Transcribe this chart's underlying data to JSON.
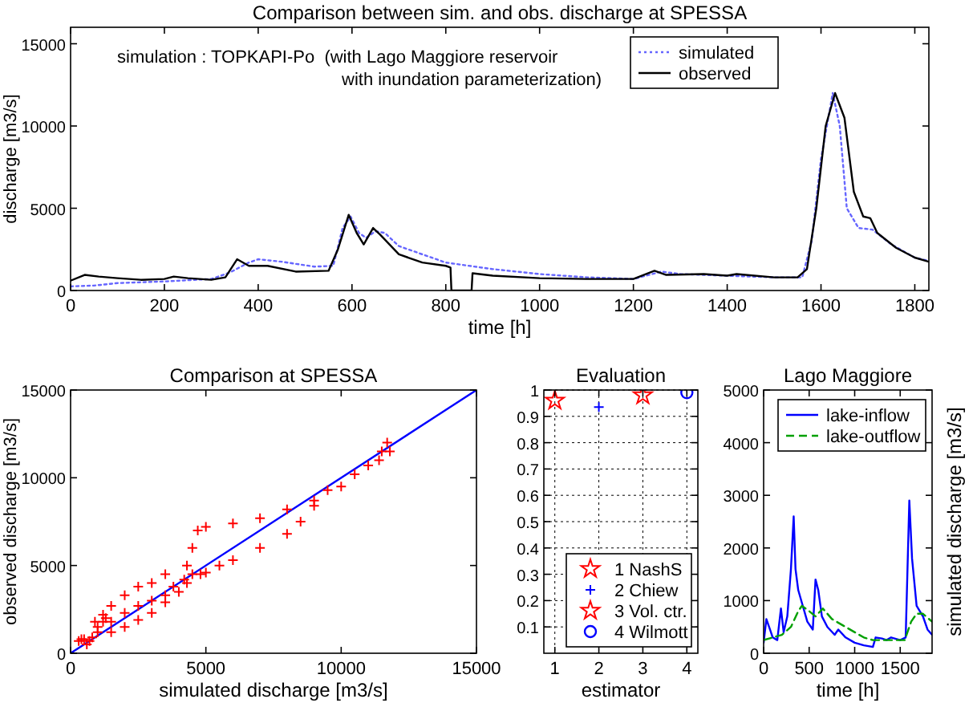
{
  "chart_data": [
    {
      "type": "line",
      "title": "Comparison between sim. and obs. discharge at SPESSA",
      "xlabel": "time [h]",
      "ylabel": "discharge [m3/s]",
      "annotations": [
        "simulation : TOPKAPI-Po  (with Lago Maggiore reservoir",
        "with inundation parameterization)"
      ],
      "xlim": [
        0,
        1830
      ],
      "ylim": [
        0,
        16000
      ],
      "xticks": [
        0,
        200,
        400,
        600,
        800,
        1000,
        1200,
        1400,
        1600,
        1800
      ],
      "yticks": [
        0,
        5000,
        10000,
        15000
      ],
      "legend": "top right",
      "grid": false,
      "marker": "none",
      "series": [
        {
          "name": "simulated",
          "color": "#6666ff",
          "line_style": "dotted",
          "x": [
            0,
            50,
            100,
            200,
            300,
            340,
            380,
            400,
            450,
            520,
            560,
            580,
            597,
            615,
            630,
            650,
            670,
            700,
            800,
            900,
            1000,
            1100,
            1200,
            1260,
            1300,
            1400,
            1500,
            1560,
            1580,
            1600,
            1625,
            1640,
            1655,
            1680,
            1710,
            1750,
            1800,
            1830
          ],
          "values": [
            250,
            300,
            450,
            550,
            700,
            1100,
            1700,
            1900,
            1750,
            1450,
            1500,
            3800,
            4500,
            3500,
            3200,
            3600,
            3500,
            2700,
            1700,
            1300,
            1000,
            800,
            700,
            1150,
            1000,
            900,
            800,
            800,
            3000,
            8000,
            12000,
            10000,
            5000,
            3800,
            3700,
            2800,
            2000,
            1800
          ]
        },
        {
          "name": "observed",
          "color": "#000000",
          "line_style": "solid",
          "x": [
            0,
            30,
            60,
            100,
            150,
            200,
            220,
            250,
            300,
            330,
            355,
            380,
            420,
            480,
            550,
            570,
            593,
            610,
            625,
            645,
            660,
            700,
            750,
            800,
            810,
            812,
            855,
            857,
            900,
            1000,
            1100,
            1200,
            1245,
            1270,
            1350,
            1400,
            1420,
            1500,
            1550,
            1570,
            1590,
            1610,
            1630,
            1650,
            1670,
            1690,
            1705,
            1720,
            1760,
            1800,
            1830
          ],
          "values": [
            600,
            950,
            850,
            750,
            650,
            700,
            850,
            750,
            650,
            800,
            1900,
            1500,
            1500,
            1150,
            1200,
            2500,
            4600,
            3500,
            2800,
            3800,
            3400,
            2200,
            1700,
            1500,
            1400,
            0,
            0,
            1050,
            900,
            750,
            700,
            700,
            1200,
            950,
            1000,
            900,
            1000,
            800,
            800,
            1300,
            5000,
            10000,
            12000,
            10500,
            6000,
            4500,
            4400,
            3500,
            2600,
            2000,
            1750
          ]
        }
      ]
    },
    {
      "type": "scatter",
      "title": "Comparison at SPESSA",
      "xlabel": "simulated discharge [m3/s]",
      "ylabel": "observed discharge [m3/s]",
      "xlim": [
        0,
        15000
      ],
      "ylim": [
        0,
        15000
      ],
      "xticks": [
        0,
        5000,
        10000,
        15000
      ],
      "yticks": [
        0,
        5000,
        10000,
        15000
      ],
      "grid": false,
      "legend": false,
      "series": [
        {
          "type": "line",
          "color": "#0000ff",
          "marker": "none",
          "x": [
            0,
            15000
          ],
          "values": [
            0,
            15000
          ]
        },
        {
          "color": "#ff0000",
          "marker": "cross",
          "x": [
            300,
            500,
            800,
            1000,
            1200,
            1000,
            1500,
            2000,
            2500,
            3000,
            3500,
            4000,
            4300,
            4500,
            4300,
            4500,
            4700,
            3500,
            3000,
            2500,
            2000,
            1500,
            1200,
            1500,
            2000,
            2500,
            3000,
            3500,
            3800,
            4200,
            700,
            900,
            1300,
            600,
            400,
            5000,
            6000,
            7000,
            8000,
            9000,
            10000,
            11000,
            11500,
            11700,
            11800,
            11400,
            10500,
            9500,
            9000,
            8500,
            8000,
            7000,
            6000,
            5500,
            5000,
            4800
          ],
          "values": [
            700,
            800,
            900,
            1500,
            1800,
            1200,
            1200,
            1500,
            1900,
            2300,
            2900,
            3500,
            4000,
            4500,
            5000,
            6000,
            7000,
            4500,
            4000,
            3800,
            3300,
            2700,
            2200,
            1800,
            2300,
            2700,
            3000,
            3300,
            3800,
            4200,
            700,
            1800,
            2000,
            500,
            800,
            7200,
            7400,
            7700,
            8200,
            8700,
            9500,
            10700,
            11500,
            12000,
            11500,
            11000,
            10200,
            9300,
            8400,
            7500,
            6800,
            6000,
            5300,
            5000,
            4600,
            4500
          ]
        }
      ]
    },
    {
      "type": "scatter",
      "title": "Evaluation",
      "xlabel": "estimator",
      "xlim": [
        0.75,
        4.25
      ],
      "ylim": [
        0,
        1
      ],
      "xticks": [
        1,
        2,
        3,
        4
      ],
      "yticks": [
        0.1,
        0.2,
        0.3,
        0.4,
        0.5,
        0.6,
        0.7,
        0.8,
        0.9,
        1
      ],
      "grid": true,
      "legend": "bottom right",
      "series": [
        {
          "name": "1 NashS",
          "color": "#ff0000",
          "marker": "star",
          "x": [
            1
          ],
          "values": [
            0.96
          ]
        },
        {
          "name": "2 Chiew",
          "color": "#0000ff",
          "marker": "cross",
          "x": [
            2
          ],
          "values": [
            0.935
          ]
        },
        {
          "name": "3 Vol. ctr.",
          "color": "#ff0000",
          "marker": "star",
          "x": [
            3
          ],
          "values": [
            0.98
          ]
        },
        {
          "name": "4 Wilmott",
          "color": "#0000ff",
          "marker": "circle",
          "x": [
            4
          ],
          "values": [
            0.99
          ]
        }
      ]
    },
    {
      "type": "line",
      "title": "Lago Maggiore",
      "xlabel": "time [h]",
      "ylabel": "simulated discharge [m3/s]",
      "xlim": [
        0,
        1850
      ],
      "ylim": [
        0,
        5000
      ],
      "xticks": [
        0,
        500,
        1000,
        1500
      ],
      "yticks": [
        0,
        1000,
        2000,
        3000,
        4000,
        5000
      ],
      "grid": false,
      "legend": "top right",
      "marker": "none",
      "series": [
        {
          "name": "lake-inflow",
          "color": "#0000ff",
          "line_style": "solid",
          "x": [
            0,
            30,
            60,
            100,
            150,
            190,
            220,
            260,
            300,
            330,
            350,
            380,
            430,
            480,
            540,
            570,
            600,
            640,
            700,
            780,
            820,
            900,
            1000,
            1100,
            1200,
            1230,
            1300,
            1350,
            1400,
            1500,
            1560,
            1600,
            1630,
            1680,
            1750,
            1800,
            1850
          ],
          "values": [
            200,
            650,
            500,
            300,
            250,
            850,
            400,
            700,
            1600,
            2600,
            1600,
            1200,
            900,
            600,
            450,
            1400,
            1200,
            700,
            500,
            350,
            450,
            300,
            200,
            150,
            120,
            300,
            280,
            250,
            300,
            250,
            300,
            2900,
            1800,
            900,
            700,
            450,
            350
          ]
        },
        {
          "name": "lake-outflow",
          "color": "#00a000",
          "line_style": "dashed",
          "x": [
            0,
            100,
            200,
            300,
            380,
            420,
            500,
            570,
            650,
            750,
            900,
            1100,
            1200,
            1400,
            1550,
            1620,
            1680,
            1750,
            1850
          ],
          "values": [
            250,
            300,
            350,
            500,
            800,
            900,
            800,
            700,
            850,
            650,
            500,
            300,
            250,
            250,
            250,
            600,
            750,
            750,
            600
          ]
        }
      ]
    }
  ]
}
